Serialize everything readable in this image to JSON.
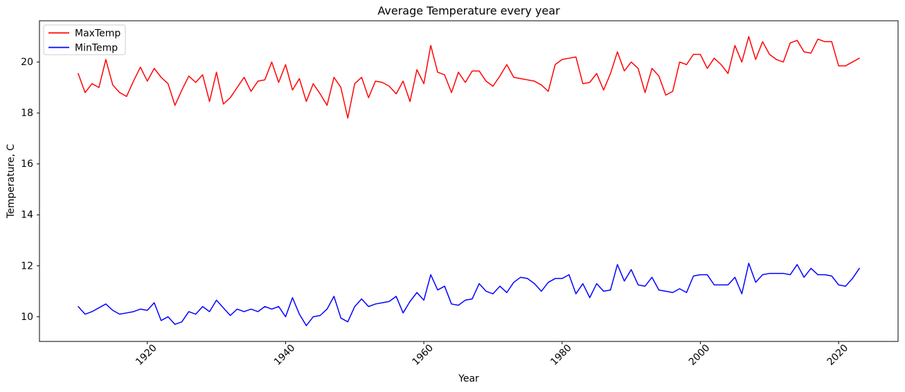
{
  "figure": {
    "title": "Average Temperature every year",
    "xlabel": "Year",
    "ylabel": "Temperature, C",
    "background": "#ffffff",
    "spine_color": "#000000"
  },
  "legend": {
    "position": "upper-left",
    "entries": [
      {
        "label": "MaxTemp",
        "color": "#ff0000"
      },
      {
        "label": "MinTemp",
        "color": "#0000ff"
      }
    ]
  },
  "axes": {
    "x_ticks": [
      "1920",
      "1940",
      "1960",
      "1980",
      "2000",
      "2020"
    ],
    "y_ticks": [
      "10",
      "12",
      "14",
      "16",
      "18",
      "20"
    ],
    "x_tick_rotation_deg": 45
  },
  "chart_data": {
    "type": "line",
    "title": "Average Temperature every year",
    "xlabel": "Year",
    "ylabel": "Temperature, C",
    "grid": false,
    "legend_position": "upper left",
    "xlim": [
      1904.4,
      2028.6
    ],
    "ylim": [
      9.03,
      21.62
    ],
    "x_tick_values": [
      1920,
      1940,
      1960,
      1980,
      2000,
      2020
    ],
    "y_tick_values": [
      10,
      12,
      14,
      16,
      18,
      20
    ],
    "x": [
      1910,
      1911,
      1912,
      1913,
      1914,
      1915,
      1916,
      1917,
      1918,
      1919,
      1920,
      1921,
      1922,
      1923,
      1924,
      1925,
      1926,
      1927,
      1928,
      1929,
      1930,
      1931,
      1932,
      1933,
      1934,
      1935,
      1936,
      1937,
      1938,
      1939,
      1940,
      1941,
      1942,
      1943,
      1944,
      1945,
      1946,
      1947,
      1948,
      1949,
      1950,
      1951,
      1952,
      1953,
      1954,
      1955,
      1956,
      1957,
      1958,
      1959,
      1960,
      1961,
      1962,
      1963,
      1964,
      1965,
      1966,
      1967,
      1968,
      1969,
      1970,
      1971,
      1972,
      1973,
      1974,
      1975,
      1976,
      1977,
      1978,
      1979,
      1980,
      1981,
      1982,
      1983,
      1984,
      1985,
      1986,
      1987,
      1988,
      1989,
      1990,
      1991,
      1992,
      1993,
      1994,
      1995,
      1996,
      1997,
      1998,
      1999,
      2000,
      2001,
      2002,
      2003,
      2004,
      2005,
      2006,
      2007,
      2008,
      2009,
      2010,
      2011,
      2012,
      2013,
      2014,
      2015,
      2016,
      2017,
      2018,
      2019,
      2020,
      2021,
      2022,
      2023
    ],
    "series": [
      {
        "name": "MaxTemp",
        "color": "#ff0000",
        "values": [
          19.55,
          18.8,
          19.15,
          19.0,
          20.1,
          19.1,
          18.8,
          18.65,
          19.25,
          19.8,
          19.25,
          19.75,
          19.4,
          19.15,
          18.3,
          18.9,
          19.45,
          19.2,
          19.5,
          18.45,
          19.6,
          18.35,
          18.6,
          19.0,
          19.4,
          18.85,
          19.25,
          19.3,
          20.0,
          19.2,
          19.9,
          18.9,
          19.35,
          18.45,
          19.15,
          18.75,
          18.3,
          19.4,
          19.0,
          17.8,
          19.15,
          19.4,
          18.6,
          19.25,
          19.2,
          19.05,
          18.75,
          19.25,
          18.45,
          19.7,
          19.15,
          20.65,
          19.6,
          19.5,
          18.8,
          19.6,
          19.2,
          19.65,
          19.65,
          19.25,
          19.05,
          19.45,
          19.9,
          19.4,
          19.35,
          19.3,
          19.25,
          19.1,
          18.85,
          19.9,
          20.1,
          20.15,
          20.2,
          19.15,
          19.2,
          19.55,
          18.9,
          19.55,
          20.4,
          19.65,
          20.0,
          19.75,
          18.8,
          19.75,
          19.45,
          18.7,
          18.85,
          20.0,
          19.9,
          20.3,
          20.3,
          19.75,
          20.15,
          19.9,
          19.55,
          20.65,
          20.0,
          21.0,
          20.1,
          20.8,
          20.3,
          20.1,
          20.0,
          20.75,
          20.85,
          20.4,
          20.35,
          20.9,
          20.8,
          20.8,
          19.85,
          19.85,
          20.0,
          20.15
        ]
      },
      {
        "name": "MinTemp",
        "color": "#0000ff",
        "values": [
          10.4,
          10.1,
          10.2,
          10.35,
          10.5,
          10.25,
          10.1,
          10.15,
          10.2,
          10.3,
          10.25,
          10.55,
          9.85,
          10.0,
          9.7,
          9.8,
          10.2,
          10.1,
          10.4,
          10.2,
          10.65,
          10.35,
          10.05,
          10.3,
          10.2,
          10.3,
          10.2,
          10.4,
          10.3,
          10.4,
          10.0,
          10.75,
          10.1,
          9.65,
          10.0,
          10.05,
          10.3,
          10.8,
          9.95,
          9.8,
          10.4,
          10.7,
          10.4,
          10.5,
          10.55,
          10.6,
          10.8,
          10.15,
          10.6,
          10.95,
          10.65,
          11.65,
          11.05,
          11.2,
          10.5,
          10.45,
          10.65,
          10.7,
          11.3,
          11.0,
          10.9,
          11.2,
          10.95,
          11.35,
          11.55,
          11.5,
          11.3,
          11.0,
          11.35,
          11.5,
          11.5,
          11.65,
          10.9,
          11.3,
          10.75,
          11.3,
          11.0,
          11.05,
          12.05,
          11.4,
          11.85,
          11.25,
          11.2,
          11.55,
          11.05,
          11.0,
          10.95,
          11.1,
          10.95,
          11.6,
          11.65,
          11.65,
          11.25,
          11.25,
          11.25,
          11.55,
          10.9,
          12.1,
          11.35,
          11.65,
          11.7,
          11.7,
          11.7,
          11.65,
          12.05,
          11.55,
          11.9,
          11.65,
          11.65,
          11.6,
          11.25,
          11.2,
          11.5,
          11.9
        ]
      }
    ]
  }
}
